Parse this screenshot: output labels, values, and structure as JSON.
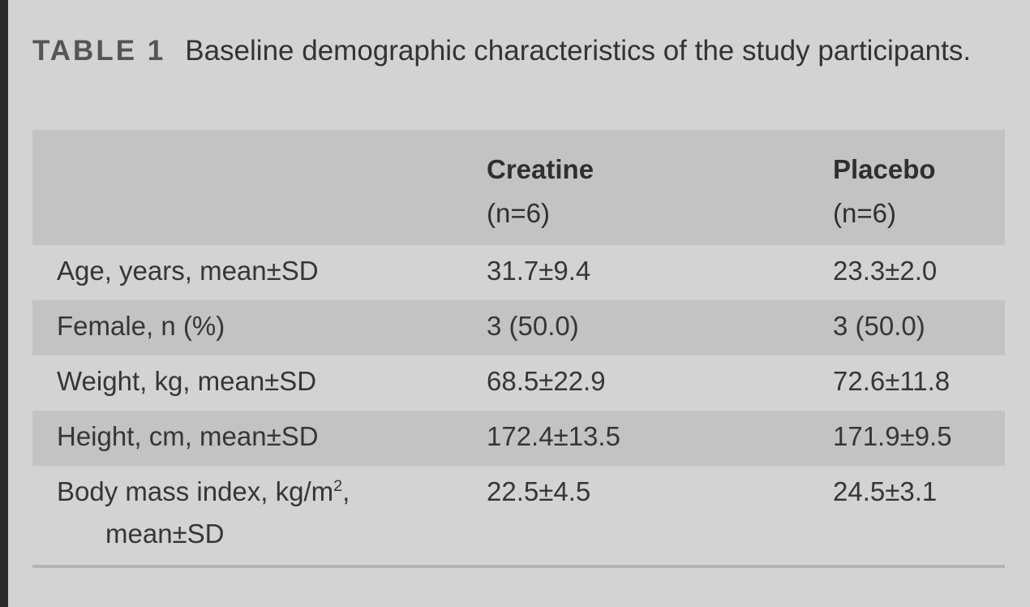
{
  "caption": {
    "label": "TABLE 1",
    "text": "Baseline demographic characteristics of the study participants."
  },
  "table": {
    "header": {
      "col1_name": "Creatine",
      "col1_n": "(n=6)",
      "col2_name": "Placebo",
      "col2_n": "(n=6)"
    },
    "rows": [
      {
        "label": "Age, years, mean±SD",
        "creatine": "31.7±9.4",
        "placebo": "23.3±2.0"
      },
      {
        "label": "Female, n (%)",
        "creatine": "3 (50.0)",
        "placebo": "3 (50.0)"
      },
      {
        "label": "Weight, kg, mean±SD",
        "creatine": "68.5±22.9",
        "placebo": "72.6±11.8"
      },
      {
        "label": "Height, cm, mean±SD",
        "creatine": "172.4±13.5",
        "placebo": "171.9±9.5"
      },
      {
        "label_line1": "Body mass index, kg/m",
        "label_sup": "2",
        "label_line1_end": ",",
        "label_line2": "mean±SD",
        "creatine": "22.5±4.5",
        "placebo": "24.5±3.1"
      }
    ]
  }
}
